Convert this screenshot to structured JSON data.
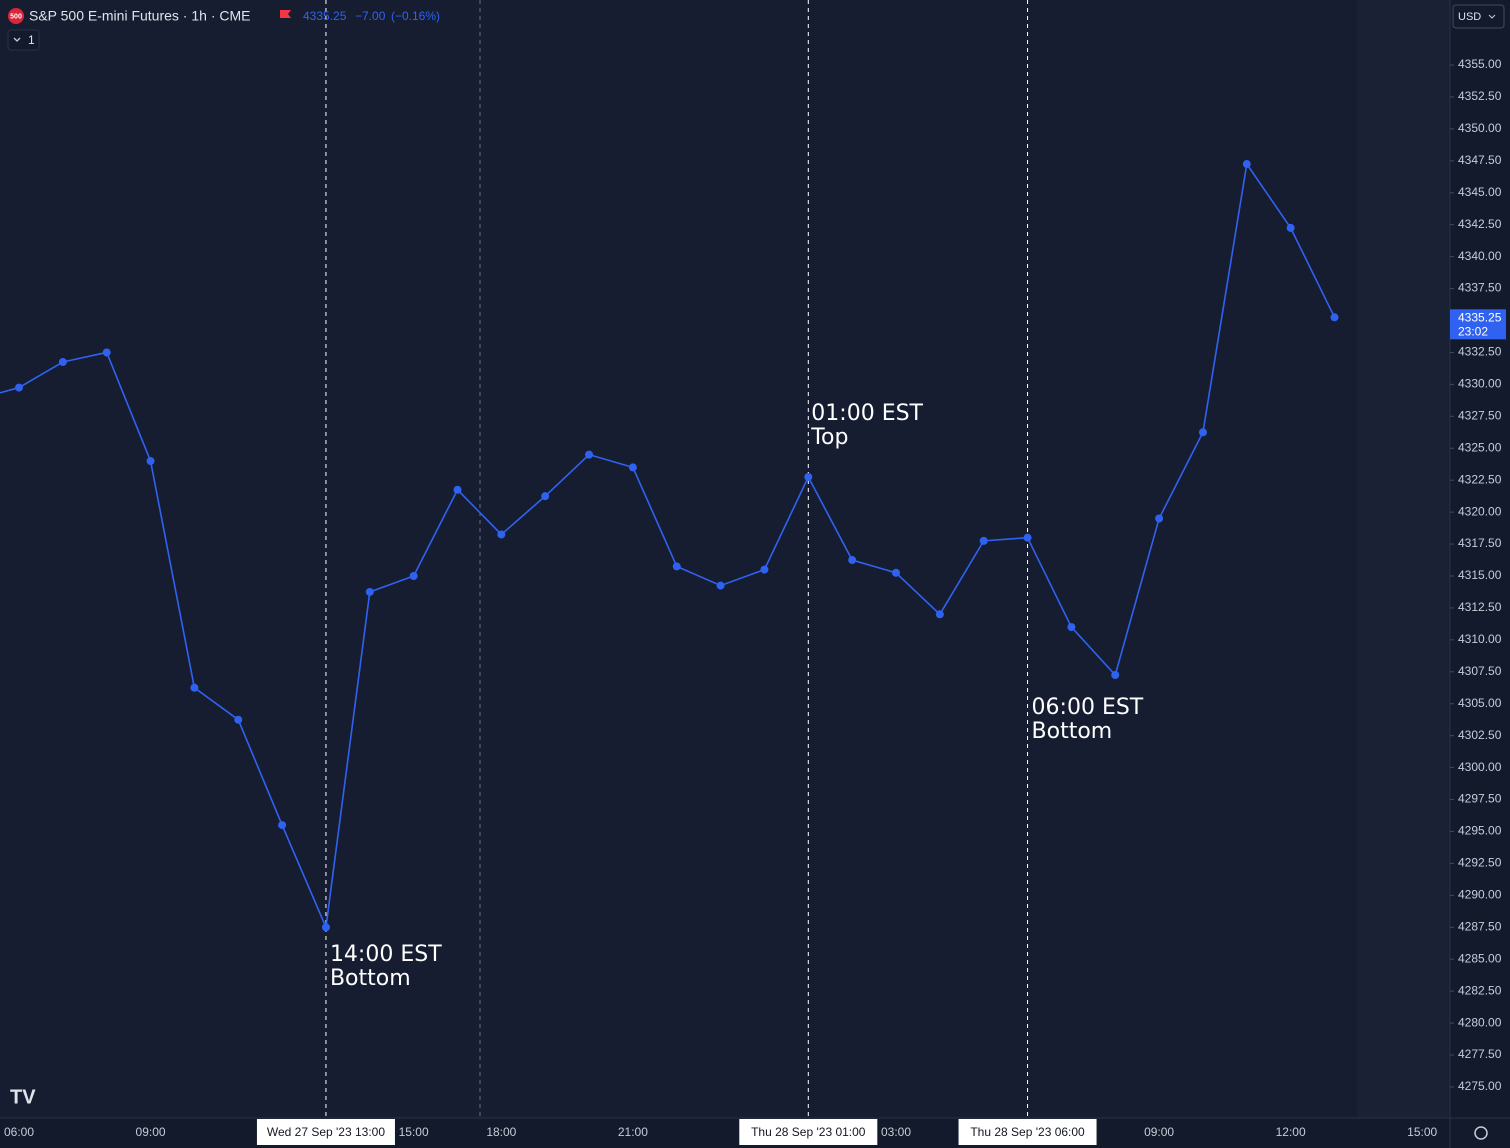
{
  "header": {
    "logo": "500",
    "symbol": "S&P 500 E-mini Futures · 1h · CME",
    "last": "4335.25",
    "change": "−7.00",
    "change_pct": "(−0.16%)",
    "legend_button": "1"
  },
  "currency": "USD",
  "last_price_label": {
    "price": "4335.25",
    "countdown": "23:02"
  },
  "chart_data": {
    "type": "line",
    "categories": [
      null,
      "06:00",
      null,
      null,
      "09:00",
      null,
      null,
      null,
      "Wed 27 Sep '23  13:00",
      null,
      "15:00",
      null,
      "18:00",
      null,
      null,
      "21:00",
      null,
      null,
      null,
      "Thu 28 Sep '23  01:00",
      null,
      "03:00",
      null,
      null,
      "Thu 28 Sep '23  06:00",
      null,
      null,
      "09:00",
      null,
      null,
      "12:00",
      null,
      null,
      "15:00"
    ],
    "series": [
      {
        "name": "S&P 500 E-mini Futures",
        "color": "#2f62f0",
        "values": [
          4328.8,
          4329.75,
          4331.75,
          4332.5,
          4324.0,
          4306.25,
          4303.75,
          4295.5,
          4287.5,
          4313.75,
          4315.0,
          4321.75,
          4318.25,
          4321.25,
          4324.5,
          4323.5,
          4315.75,
          4314.25,
          4315.5,
          4322.75,
          4316.25,
          4315.25,
          4312.0,
          4317.75,
          4318.0,
          4311.0,
          4307.25,
          4319.5,
          4326.25,
          4347.25,
          4342.25,
          4335.25,
          null,
          null
        ]
      }
    ],
    "ylim": [
      4272.57,
      4360.09
    ],
    "yticks": [
      {
        "value": 4275,
        "label": "4275.00"
      },
      {
        "value": 4277.5,
        "label": "4277.50"
      },
      {
        "value": 4280,
        "label": "4280.00"
      },
      {
        "value": 4282.5,
        "label": "4282.50"
      },
      {
        "value": 4285,
        "label": "4285.00"
      },
      {
        "value": 4287.5,
        "label": "4287.50"
      },
      {
        "value": 4290,
        "label": "4290.00"
      },
      {
        "value": 4292.5,
        "label": "4292.50"
      },
      {
        "value": 4295,
        "label": "4295.00"
      },
      {
        "value": 4297.5,
        "label": "4297.50"
      },
      {
        "value": 4300,
        "label": "4300.00"
      },
      {
        "value": 4302.5,
        "label": "4302.50"
      },
      {
        "value": 4305,
        "label": "4305.00"
      },
      {
        "value": 4307.5,
        "label": "4307.50"
      },
      {
        "value": 4310,
        "label": "4310.00"
      },
      {
        "value": 4312.5,
        "label": "4312.50"
      },
      {
        "value": 4315,
        "label": "4315.00"
      },
      {
        "value": 4317.5,
        "label": "4317.50"
      },
      {
        "value": 4320,
        "label": "4320.00"
      },
      {
        "value": 4322.5,
        "label": "4322.50"
      },
      {
        "value": 4325,
        "label": "4325.00"
      },
      {
        "value": 4327.5,
        "label": "4327.50"
      },
      {
        "value": 4330,
        "label": "4330.00"
      },
      {
        "value": 4332.5,
        "label": "4332.50"
      },
      {
        "value": 4335,
        "label": "4335.00"
      },
      {
        "value": 4337.5,
        "label": "4337.50"
      },
      {
        "value": 4340,
        "label": "4340.00"
      },
      {
        "value": 4342.5,
        "label": "4342.50"
      },
      {
        "value": 4345,
        "label": "4345.00"
      },
      {
        "value": 4347.5,
        "label": "4347.50"
      },
      {
        "value": 4350,
        "label": "4350.00"
      },
      {
        "value": 4352.5,
        "label": "4352.50"
      },
      {
        "value": 4355,
        "label": "4355.00"
      }
    ],
    "annotations": [
      {
        "x": 8,
        "lines": [
          "14:00 EST",
          "Bottom"
        ]
      },
      {
        "x": 19,
        "lines": [
          "01:00 EST",
          "Top"
        ]
      },
      {
        "x": 24,
        "lines": [
          "06:00 EST",
          "Bottom"
        ]
      }
    ]
  }
}
